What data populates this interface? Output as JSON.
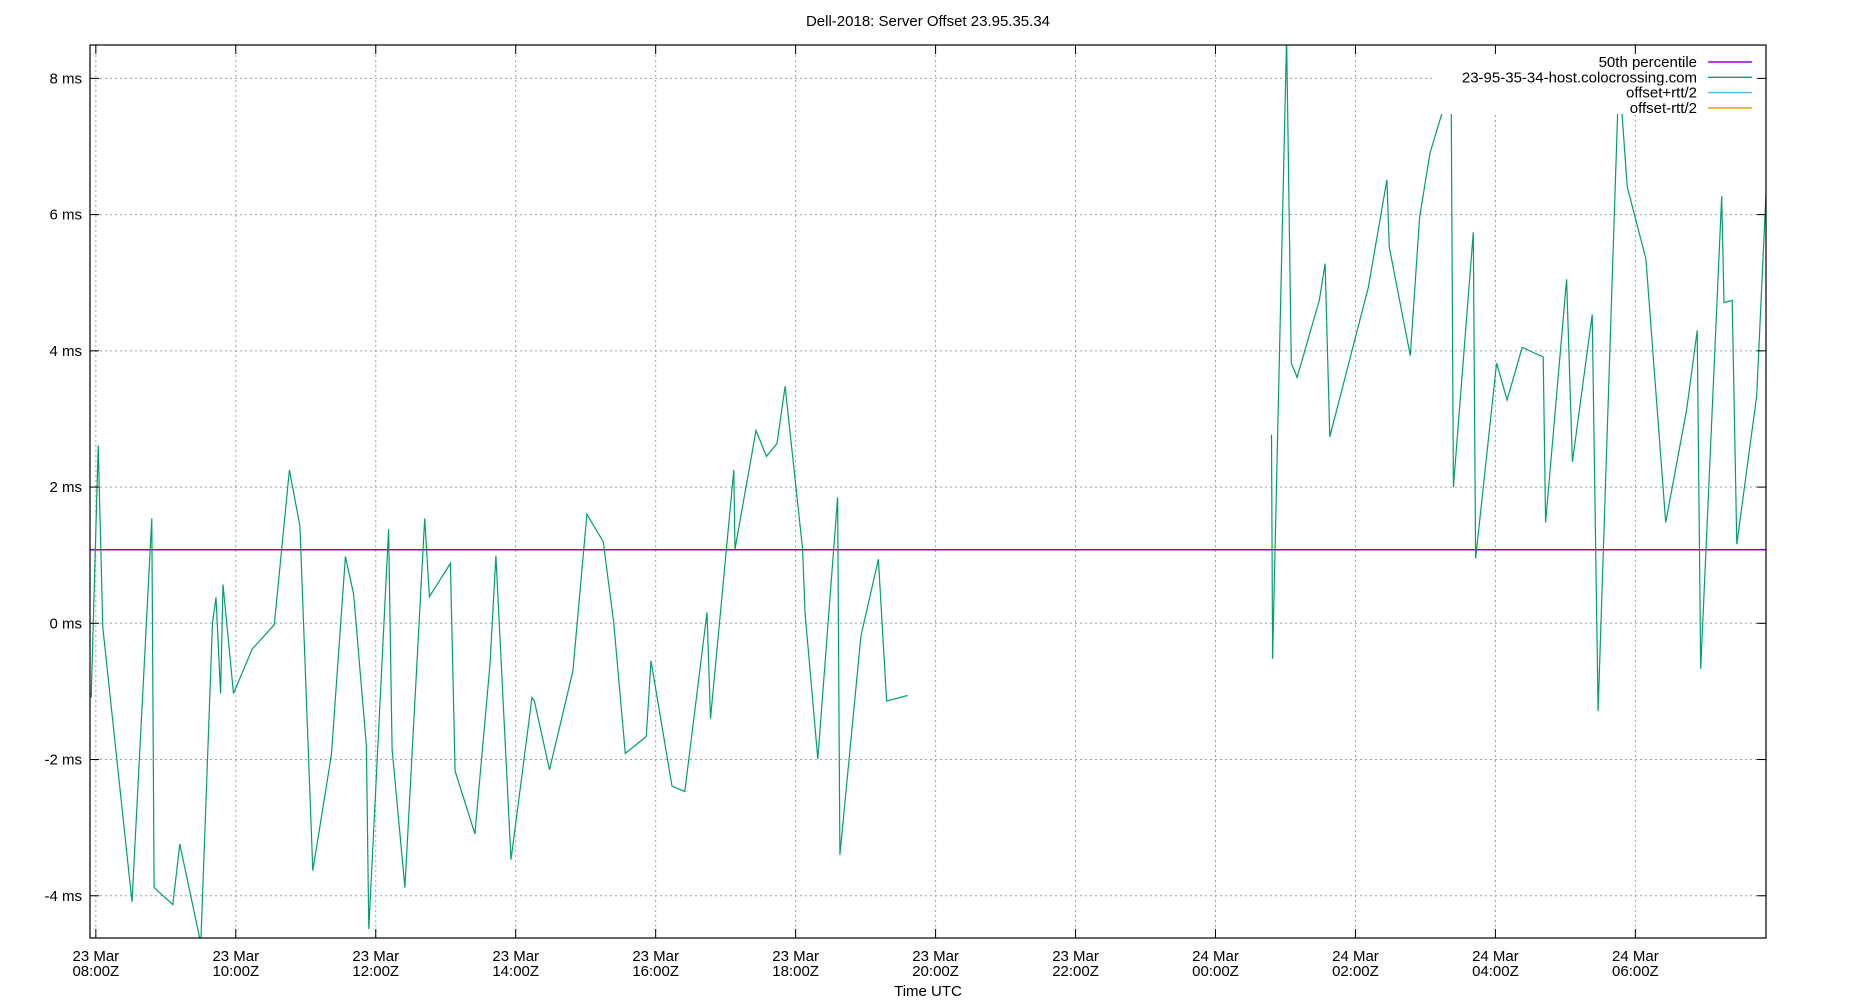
{
  "chart_data": {
    "type": "line",
    "title": "Dell-2018: Server Offset 23.95.35.34",
    "xlabel": "Time UTC",
    "ylabel": "",
    "xlim": [
      "23 Mar 07:55",
      "24 Mar 07:52"
    ],
    "ylim": [
      -4.62,
      8.49
    ],
    "grid": true,
    "legend_position": "top-right",
    "y_ticks": [
      {
        "value": -4,
        "label": "-4 ms"
      },
      {
        "value": -2,
        "label": "-2 ms"
      },
      {
        "value": 0,
        "label": "0 ms"
      },
      {
        "value": 2,
        "label": "2 ms"
      },
      {
        "value": 4,
        "label": "4 ms"
      },
      {
        "value": 6,
        "label": "6 ms"
      },
      {
        "value": 8,
        "label": "8 ms"
      }
    ],
    "x_ticks": [
      {
        "value": "23 Mar 08:00",
        "line1": "23 Mar",
        "line2": "08:00Z"
      },
      {
        "value": "23 Mar 10:00",
        "line1": "23 Mar",
        "line2": "10:00Z"
      },
      {
        "value": "23 Mar 12:00",
        "line1": "23 Mar",
        "line2": "12:00Z"
      },
      {
        "value": "23 Mar 14:00",
        "line1": "23 Mar",
        "line2": "14:00Z"
      },
      {
        "value": "23 Mar 16:00",
        "line1": "23 Mar",
        "line2": "16:00Z"
      },
      {
        "value": "23 Mar 18:00",
        "line1": "23 Mar",
        "line2": "18:00Z"
      },
      {
        "value": "23 Mar 20:00",
        "line1": "23 Mar",
        "line2": "20:00Z"
      },
      {
        "value": "23 Mar 22:00",
        "line1": "23 Mar",
        "line2": "22:00Z"
      },
      {
        "value": "24 Mar 00:00",
        "line1": "24 Mar",
        "line2": "00:00Z"
      },
      {
        "value": "24 Mar 02:00",
        "line1": "24 Mar",
        "line2": "02:00Z"
      },
      {
        "value": "24 Mar 04:00",
        "line1": "24 Mar",
        "line2": "04:00Z"
      },
      {
        "value": "24 Mar 06:00",
        "line1": "24 Mar",
        "line2": "06:00Z"
      }
    ],
    "series": [
      {
        "name": "50th percentile",
        "color": "#9400d3",
        "constant": 1.08
      },
      {
        "name": "23-95-35-34-host.colocrossing.com",
        "color": "#009e73",
        "segments": [
          [
            [
              "23 Mar 07:56",
              -1.09
            ],
            [
              "23 Mar 08:02",
              2.61
            ],
            [
              "23 Mar 08:06",
              -0.06
            ],
            [
              "23 Mar 08:31",
              -4.09
            ],
            [
              "23 Mar 08:48",
              1.54
            ],
            [
              "23 Mar 08:50",
              -3.88
            ],
            [
              "23 Mar 09:06",
              -4.13
            ],
            [
              "23 Mar 09:12",
              -3.24
            ],
            [
              "23 Mar 09:30",
              -4.7
            ],
            [
              "23 Mar 09:40",
              0.01
            ],
            [
              "23 Mar 09:43",
              0.38
            ],
            [
              "23 Mar 09:47",
              -1.03
            ],
            [
              "23 Mar 09:49",
              0.57
            ],
            [
              "23 Mar 09:58",
              -1.03
            ],
            [
              "23 Mar 10:14",
              -0.38
            ],
            [
              "23 Mar 10:33",
              -0.02
            ],
            [
              "23 Mar 10:46",
              2.25
            ],
            [
              "23 Mar 10:55",
              1.43
            ],
            [
              "23 Mar 11:06",
              -3.63
            ],
            [
              "23 Mar 11:22",
              -1.93
            ],
            [
              "23 Mar 11:34",
              0.98
            ],
            [
              "23 Mar 11:41",
              0.43
            ],
            [
              "23 Mar 11:52",
              -1.8
            ],
            [
              "23 Mar 11:54",
              -4.49
            ],
            [
              "23 Mar 12:11",
              1.38
            ],
            [
              "23 Mar 12:14",
              -1.85
            ],
            [
              "23 Mar 12:25",
              -3.88
            ],
            [
              "23 Mar 12:42",
              1.54
            ],
            [
              "23 Mar 12:46",
              0.39
            ],
            [
              "23 Mar 13:04",
              0.88
            ],
            [
              "23 Mar 13:08",
              -2.17
            ],
            [
              "23 Mar 13:25",
              -3.09
            ],
            [
              "23 Mar 13:38",
              -0.6
            ],
            [
              "23 Mar 13:43",
              0.99
            ],
            [
              "23 Mar 13:56",
              -3.47
            ],
            [
              "23 Mar 14:14",
              -1.09
            ],
            [
              "23 Mar 14:16",
              -1.14
            ],
            [
              "23 Mar 14:29",
              -2.15
            ],
            [
              "23 Mar 14:49",
              -0.7
            ],
            [
              "23 Mar 15:01",
              1.6
            ],
            [
              "23 Mar 15:15",
              1.2
            ],
            [
              "23 Mar 15:24",
              0.01
            ],
            [
              "23 Mar 15:34",
              -1.91
            ],
            [
              "23 Mar 15:52",
              -1.66
            ],
            [
              "23 Mar 15:56",
              -0.55
            ],
            [
              "23 Mar 16:14",
              -2.39
            ],
            [
              "23 Mar 16:25",
              -2.47
            ],
            [
              "23 Mar 16:44",
              0.16
            ],
            [
              "23 Mar 16:47",
              -1.4
            ],
            [
              "23 Mar 17:07",
              2.25
            ],
            [
              "23 Mar 17:08",
              1.09
            ],
            [
              "23 Mar 17:26",
              2.83
            ],
            [
              "23 Mar 17:35",
              2.45
            ],
            [
              "23 Mar 17:44",
              2.64
            ],
            [
              "23 Mar 17:51",
              3.48
            ],
            [
              "23 Mar 18:06",
              1.09
            ],
            [
              "23 Mar 18:08",
              0.16
            ],
            [
              "23 Mar 18:19",
              -1.99
            ],
            [
              "23 Mar 18:36",
              1.85
            ],
            [
              "23 Mar 18:38",
              -3.4
            ],
            [
              "23 Mar 18:56",
              -0.19
            ],
            [
              "23 Mar 19:11",
              0.94
            ],
            [
              "23 Mar 19:18",
              -1.14
            ],
            [
              "23 Mar 19:36",
              -1.06
            ]
          ],
          [
            [
              "24 Mar 00:48",
              2.77
            ],
            [
              "24 Mar 00:49",
              -0.52
            ],
            [
              "24 Mar 01:01",
              8.6
            ],
            [
              "24 Mar 01:05",
              3.82
            ],
            [
              "24 Mar 01:10",
              3.61
            ],
            [
              "24 Mar 01:29",
              4.74
            ],
            [
              "24 Mar 01:34",
              5.28
            ],
            [
              "24 Mar 01:38",
              2.74
            ],
            [
              "24 Mar 02:11",
              4.93
            ],
            [
              "24 Mar 02:27",
              6.51
            ],
            [
              "24 Mar 02:29",
              5.52
            ],
            [
              "24 Mar 02:47",
              3.93
            ],
            [
              "24 Mar 02:55",
              5.96
            ],
            [
              "24 Mar 03:04",
              6.91
            ],
            [
              "24 Mar 03:22",
              7.93
            ],
            [
              "24 Mar 03:24",
              2.0
            ],
            [
              "24 Mar 03:41",
              5.74
            ],
            [
              "24 Mar 03:43",
              0.95
            ],
            [
              "24 Mar 04:01",
              3.82
            ],
            [
              "24 Mar 04:10",
              3.28
            ],
            [
              "24 Mar 04:23",
              4.05
            ],
            [
              "24 Mar 04:41",
              3.91
            ],
            [
              "24 Mar 04:43",
              1.48
            ],
            [
              "24 Mar 05:01",
              5.05
            ],
            [
              "24 Mar 05:06",
              2.37
            ],
            [
              "24 Mar 05:23",
              4.53
            ],
            [
              "24 Mar 05:28",
              -1.29
            ],
            [
              "24 Mar 05:46",
              8.11
            ],
            [
              "24 Mar 05:53",
              6.41
            ],
            [
              "24 Mar 06:09",
              5.35
            ],
            [
              "24 Mar 06:26",
              1.48
            ],
            [
              "24 Mar 06:44",
              3.14
            ],
            [
              "24 Mar 06:53",
              4.3
            ],
            [
              "24 Mar 06:56",
              -0.67
            ],
            [
              "24 Mar 07:14",
              6.27
            ],
            [
              "24 Mar 07:16",
              4.71
            ],
            [
              "24 Mar 07:23",
              4.74
            ],
            [
              "24 Mar 07:27",
              1.16
            ],
            [
              "24 Mar 07:44",
              3.34
            ],
            [
              "24 Mar 07:52",
              6.31
            ]
          ]
        ]
      },
      {
        "name": "offset+rtt/2",
        "color": "#56b4e9"
      },
      {
        "name": "offset-rtt/2",
        "color": "#e69f00"
      }
    ]
  }
}
